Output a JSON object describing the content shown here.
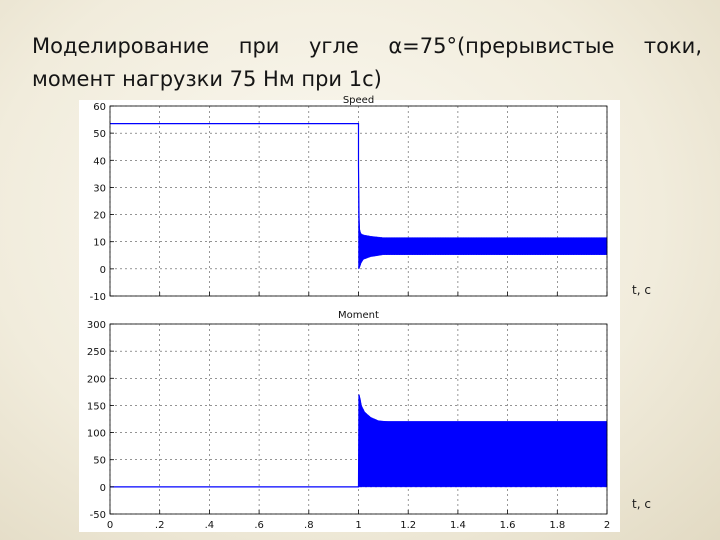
{
  "slide": {
    "title_line1": "Моделирование при угле α=75°(прерывистые токи,",
    "title_line2": "момент нагрузки 75 Нм при 1с)"
  },
  "chart_data": [
    {
      "type": "line",
      "title": "Speed",
      "xlabel": "t, c",
      "ylabel": "",
      "xlim": [
        0,
        2
      ],
      "ylim": [
        -10,
        60
      ],
      "xticks": [],
      "yticks": [
        -10,
        0,
        10,
        20,
        30,
        40,
        50,
        60
      ],
      "grid": true,
      "color": "#0000ff",
      "series": [
        {
          "x": [
            0,
            0.999,
            1.0,
            1.0,
            1.002,
            1.005,
            1.01,
            1.02,
            1.04,
            1.07,
            1.12,
            2.0
          ],
          "y": [
            53.5,
            53.5,
            53.5,
            38,
            20,
            8,
            5,
            6,
            7,
            8,
            8,
            8
          ],
          "band_from_x": 1.0,
          "envelope_upper": [
            [
              1.0,
              38
            ],
            [
              1.003,
              16
            ],
            [
              1.006,
              14
            ],
            [
              1.01,
              13
            ],
            [
              1.02,
              12.5
            ],
            [
              1.05,
              12
            ],
            [
              1.1,
              11.5
            ],
            [
              2.0,
              11.5
            ]
          ],
          "envelope_lower": [
            [
              1.0,
              0
            ],
            [
              1.003,
              0
            ],
            [
              1.01,
              2
            ],
            [
              1.02,
              3.5
            ],
            [
              1.05,
              4.5
            ],
            [
              1.1,
              5.2
            ],
            [
              2.0,
              5.2
            ]
          ]
        }
      ]
    },
    {
      "type": "line",
      "title": "Moment",
      "xlabel": "t, c",
      "ylabel": "",
      "xlim": [
        0,
        2
      ],
      "ylim": [
        -50,
        300
      ],
      "xticks": [
        0,
        0.2,
        0.4,
        0.6,
        0.8,
        1,
        1.2,
        1.4,
        1.6,
        1.8,
        2
      ],
      "yticks": [
        -50,
        0,
        50,
        100,
        150,
        200,
        250,
        300
      ],
      "grid": true,
      "color": "#0000ff",
      "series": [
        {
          "x": [
            0,
            0.999,
            1.0,
            1.002,
            1.01,
            1.03,
            1.06,
            1.1,
            2.0
          ],
          "y": [
            0,
            0,
            0,
            170,
            140,
            125,
            120,
            120,
            120
          ],
          "band_from_x": 1.0,
          "envelope_upper": [
            [
              1.0,
              0
            ],
            [
              1.002,
              170
            ],
            [
              1.006,
              165
            ],
            [
              1.012,
              150
            ],
            [
              1.025,
              138
            ],
            [
              1.05,
              128
            ],
            [
              1.08,
              122
            ],
            [
              1.12,
              120
            ],
            [
              2.0,
              120
            ]
          ],
          "envelope_lower": [
            [
              1.0,
              0
            ],
            [
              1.05,
              0
            ],
            [
              2.0,
              0
            ]
          ]
        }
      ]
    }
  ]
}
